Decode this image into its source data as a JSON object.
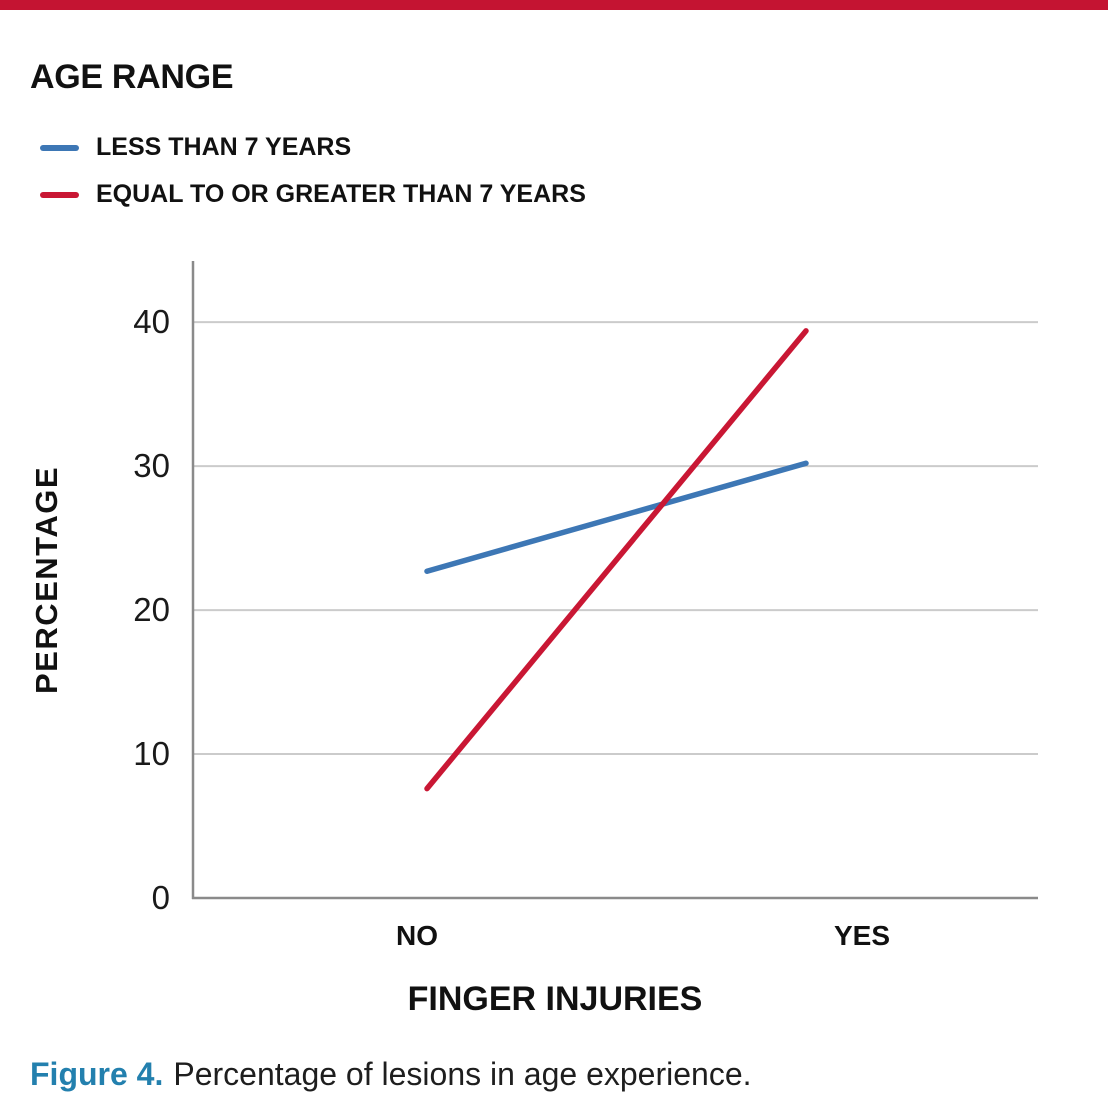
{
  "page": {
    "top_accent_color": "#C41432"
  },
  "chart_data": {
    "type": "line",
    "title": "AGE RANGE",
    "categories": [
      "NO",
      "YES"
    ],
    "series": [
      {
        "name": "LESS THAN 7 YEARS",
        "color": "#3D77B5",
        "values": [
          22.7,
          30.2
        ]
      },
      {
        "name": "EQUAL TO OR GREATER THAN 7 YEARS",
        "color": "#C91734",
        "values": [
          7.6,
          39.4
        ]
      }
    ],
    "xlabel": "FINGER INJURIES",
    "ylabel": "PERCENTAGE",
    "yticks": [
      0,
      10,
      20,
      30,
      40
    ],
    "ylim": [
      0,
      44.25
    ],
    "grid": "horizontal",
    "legend_position": "top-left",
    "axis_color": "#8A8A8A",
    "gridline_color": "#CBCBCB"
  },
  "caption": {
    "label": "Figure 4.",
    "text": "Percentage of lesions in age experience.",
    "label_color": "#2380AE"
  }
}
